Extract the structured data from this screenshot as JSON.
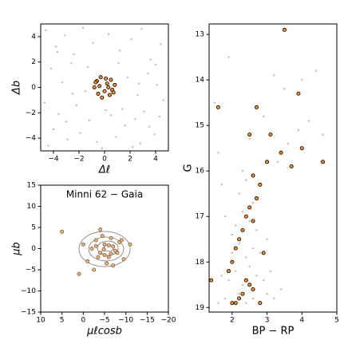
{
  "chart_data": [
    {
      "type": "scatter",
      "xlabel": "Δℓ",
      "ylabel": "Δb",
      "xlim": [
        -5,
        5
      ],
      "ylim": [
        -5,
        5
      ],
      "xticks": [
        {
          "value": -4,
          "label": "−4"
        },
        {
          "value": -2,
          "label": "−2"
        },
        0,
        2,
        4
      ],
      "yticks": [
        {
          "value": -4,
          "label": "−4"
        },
        {
          "value": -2,
          "label": "−2"
        },
        0,
        2,
        4
      ],
      "series": [
        {
          "color": "#8c8c8c",
          "x": [
            -4.6,
            -3.8,
            -3.1,
            -2.4,
            -1.7,
            -0.9,
            0.3,
            1.2,
            2.1,
            2.9,
            3.6,
            4.4,
            -4.2,
            -3.3,
            -2.6,
            -1.5,
            1.8,
            2.6,
            3.4,
            4.1,
            -4.7,
            -3.6,
            -2.2,
            -1.2,
            0.5,
            1.4,
            2.4,
            3.1,
            4.6,
            -4.0,
            -2.9,
            -1.9,
            1.6,
            2.8,
            3.9,
            -4.4,
            -3.0,
            -0.6,
            0.9,
            2.2,
            3.5,
            4.3,
            -1.3,
            0.1,
            1.1,
            -2.5,
            2.7,
            -3.7,
            4.0,
            -0.2
          ],
          "values": [
            4.5,
            3.2,
            4.1,
            2.6,
            4.7,
            3.5,
            4.2,
            2.9,
            3.8,
            4.6,
            2.2,
            3.4,
            1.5,
            0.4,
            1.9,
            -0.3,
            0.8,
            -0.6,
            1.1,
            0.2,
            -1.2,
            -2.1,
            -1.4,
            -2.6,
            -2.2,
            -1.7,
            -2.5,
            -1.9,
            -1.0,
            -3.3,
            -4.1,
            -3.6,
            -3.0,
            -4.4,
            -3.7,
            -4.6,
            -2.7,
            -4.3,
            -3.9,
            -4.7,
            -3.1,
            -2.3,
            1.6,
            -1.8,
            1.9,
            -0.5,
            0.3,
            2.8,
            1.8,
            -4.8
          ]
        },
        {
          "color": "#f28e2b",
          "edgecolor": "#000000",
          "x": [
            -0.6,
            -0.3,
            0.1,
            0.5,
            0.8,
            -0.8,
            -0.4,
            0.2,
            0.6,
            -0.5,
            0.0,
            0.4,
            -0.2,
            0.7,
            -0.7,
            0.3
          ],
          "values": [
            0.5,
            0.8,
            0.7,
            0.6,
            0.2,
            0.0,
            0.1,
            0.3,
            -0.2,
            -0.5,
            -0.3,
            -0.6,
            -0.8,
            -0.4,
            0.4,
            0.0
          ]
        }
      ]
    },
    {
      "type": "scatter",
      "title": "Minni 62  −  Gaia",
      "xlabel": "μℓcosb",
      "ylabel": "μb",
      "xlim": [
        10,
        -20
      ],
      "ylim": [
        -15,
        15
      ],
      "xticks": [
        10,
        5,
        0,
        {
          "value": -5,
          "label": "−5"
        },
        {
          "value": -10,
          "label": "−10"
        },
        {
          "value": -15,
          "label": "−15"
        },
        {
          "value": -20,
          "label": "−20"
        }
      ],
      "yticks": [
        {
          "value": -15,
          "label": "−15"
        },
        {
          "value": -10,
          "label": "−10"
        },
        {
          "value": -5,
          "label": "−5"
        },
        0,
        5,
        10,
        15
      ],
      "series": [
        {
          "color": "#e0b48c",
          "edgecolor": "#8b5a2b",
          "x": [
            -2,
            -3,
            -4,
            -5,
            -6,
            -7,
            -8,
            -9,
            -1,
            0,
            -4.5,
            -5.5,
            -6.5,
            -3.5,
            -7.5,
            -2.5,
            -8.5,
            -5,
            -6,
            -4,
            -9.5,
            5,
            -11,
            1,
            -7,
            -3,
            -6.5,
            -4.8
          ],
          "values": [
            0,
            2,
            -1,
            1,
            -2,
            0.5,
            -1,
            2,
            -3,
            1,
            3,
            -3.5,
            2.5,
            -2,
            -0.5,
            -5,
            1.5,
            -1.5,
            0.8,
            4.5,
            -2.5,
            4,
            1,
            -6,
            -4,
            0.6,
            -1.2,
            -0.2
          ]
        }
      ]
    },
    {
      "type": "scatter",
      "xlabel": "BP − RP",
      "ylabel": "G",
      "xlim": [
        1.34,
        5
      ],
      "ylim": [
        19.1,
        12.77
      ],
      "xticks": [
        2,
        3,
        4,
        5
      ],
      "yticks": [
        13,
        14,
        15,
        16,
        17,
        18,
        19
      ],
      "series": [
        {
          "color": "#8c8c8c",
          "x": [
            1.6,
            1.8,
            2.0,
            2.2,
            2.4,
            2.6,
            2.8,
            3.0,
            3.2,
            1.7,
            1.9,
            2.1,
            2.3,
            2.5,
            2.7,
            2.9,
            3.1,
            3.4,
            2.0,
            2.2,
            2.4,
            2.6,
            2.8,
            3.0,
            2.1,
            2.3,
            2.5,
            2.7,
            2.2,
            2.4,
            2.6,
            1.8,
            2.0,
            2.3,
            3.3,
            3.6,
            3.9,
            4.2,
            4.6,
            1.5,
            1.6,
            1.7,
            2.5,
            2.9,
            3.5,
            4.0,
            4.4,
            1.9,
            2.7,
            3.2
          ],
          "values": [
            18.9,
            18.8,
            18.9,
            18.7,
            18.9,
            18.8,
            18.9,
            18.7,
            18.8,
            18.3,
            18.4,
            18.2,
            18.5,
            18.1,
            18.3,
            18.4,
            18.2,
            18.6,
            17.8,
            17.6,
            17.9,
            17.7,
            17.8,
            17.5,
            17.2,
            16.9,
            17.1,
            17.3,
            16.5,
            16.2,
            16.7,
            17.0,
            17.4,
            16.0,
            15.8,
            15.4,
            15.1,
            14.9,
            15.2,
            14.5,
            15.6,
            16.3,
            15.3,
            14.8,
            14.2,
            14.0,
            13.8,
            13.5,
            14.6,
            13.9
          ]
        },
        {
          "color": "#f28e2b",
          "edgecolor": "#000000",
          "x": [
            3.5,
            2.7,
            3.9,
            1.6,
            3.1,
            2.5,
            3.4,
            3.0,
            3.7,
            4.0,
            4.6,
            2.6,
            2.8,
            2.7,
            2.5,
            2.4,
            2.3,
            2.2,
            2.1,
            2.0,
            1.9,
            2.4,
            2.6,
            2.3,
            2.1,
            2.0,
            2.2,
            2.5,
            2.8,
            1.4,
            2.9,
            2.6
          ],
          "values": [
            12.9,
            14.6,
            14.3,
            14.6,
            15.2,
            15.2,
            15.6,
            15.8,
            15.9,
            15.5,
            15.8,
            16.1,
            16.3,
            16.6,
            16.8,
            17.0,
            17.3,
            17.5,
            17.7,
            18.0,
            18.2,
            18.4,
            18.6,
            18.7,
            18.9,
            18.9,
            18.8,
            18.5,
            18.9,
            18.4,
            17.8,
            17.1
          ]
        }
      ]
    }
  ]
}
